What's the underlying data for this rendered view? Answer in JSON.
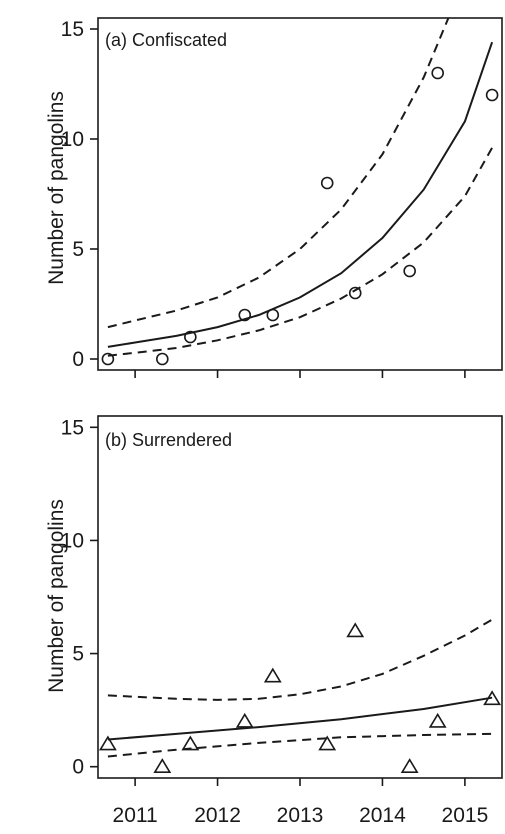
{
  "chart_data": [
    {
      "type": "scatter",
      "panel_label": "(a) Confiscated",
      "ylabel": "Number of pangolins",
      "xlim": [
        2010.55,
        2015.45
      ],
      "ylim": [
        -0.5,
        15.5
      ],
      "yticks": [
        0,
        5,
        10,
        15
      ],
      "xticks": [
        2011,
        2012,
        2013,
        2014,
        2015
      ],
      "x_tick_labels_shown": false,
      "marker": "circle",
      "points": {
        "x": [
          2010.67,
          2011.33,
          2011.67,
          2012.33,
          2012.67,
          2013.33,
          2013.67,
          2014.33,
          2014.67,
          2015.33
        ],
        "y": [
          0,
          0,
          1,
          2,
          2,
          8,
          3,
          4,
          13,
          12
        ]
      },
      "fit": {
        "style": "solid",
        "x": [
          2010.67,
          2011.0,
          2011.5,
          2012.0,
          2012.5,
          2013.0,
          2013.5,
          2014.0,
          2014.5,
          2015.0,
          2015.33
        ],
        "y": [
          0.55,
          0.75,
          1.05,
          1.45,
          2.0,
          2.8,
          3.9,
          5.5,
          7.7,
          10.8,
          14.4
        ]
      },
      "ci_upper": {
        "style": "dashed",
        "x": [
          2010.67,
          2011.0,
          2011.5,
          2012.0,
          2012.5,
          2013.0,
          2013.5,
          2014.0,
          2014.5,
          2014.8
        ],
        "y": [
          1.45,
          1.75,
          2.2,
          2.8,
          3.7,
          5.0,
          6.8,
          9.3,
          12.8,
          15.5
        ]
      },
      "ci_lower": {
        "style": "dashed",
        "x": [
          2010.67,
          2011.0,
          2011.5,
          2012.0,
          2012.5,
          2013.0,
          2013.5,
          2014.0,
          2014.5,
          2015.0,
          2015.33
        ],
        "y": [
          0.15,
          0.28,
          0.5,
          0.85,
          1.3,
          1.9,
          2.75,
          3.85,
          5.3,
          7.4,
          9.6
        ]
      }
    },
    {
      "type": "scatter",
      "panel_label": "(b) Surrendered",
      "ylabel": "Number of pangolins",
      "xlim": [
        2010.55,
        2015.45
      ],
      "ylim": [
        -0.5,
        15.5
      ],
      "yticks": [
        0,
        5,
        10,
        15
      ],
      "xticks": [
        2011,
        2012,
        2013,
        2014,
        2015
      ],
      "x_tick_labels": [
        "2011",
        "2012",
        "2013",
        "2014",
        "2015"
      ],
      "marker": "triangle",
      "points": {
        "x": [
          2010.67,
          2011.33,
          2011.67,
          2012.33,
          2012.67,
          2013.33,
          2013.67,
          2014.33,
          2014.67,
          2015.33
        ],
        "y": [
          1,
          0,
          1,
          2,
          4,
          1,
          6,
          0,
          2,
          3
        ]
      },
      "fit": {
        "style": "solid",
        "x": [
          2010.67,
          2011.5,
          2012.5,
          2013.5,
          2014.5,
          2015.33
        ],
        "y": [
          1.2,
          1.45,
          1.75,
          2.1,
          2.55,
          3.05
        ]
      },
      "ci_upper": {
        "style": "dashed",
        "x": [
          2010.67,
          2011.5,
          2012.0,
          2012.5,
          2013.0,
          2013.5,
          2014.0,
          2014.5,
          2015.0,
          2015.33
        ],
        "y": [
          3.15,
          3.0,
          2.95,
          3.0,
          3.2,
          3.55,
          4.1,
          4.9,
          5.8,
          6.5
        ]
      },
      "ci_lower": {
        "style": "dashed",
        "x": [
          2010.67,
          2011.5,
          2012.5,
          2013.5,
          2014.5,
          2015.33
        ],
        "y": [
          0.45,
          0.75,
          1.05,
          1.3,
          1.4,
          1.45
        ]
      }
    }
  ]
}
